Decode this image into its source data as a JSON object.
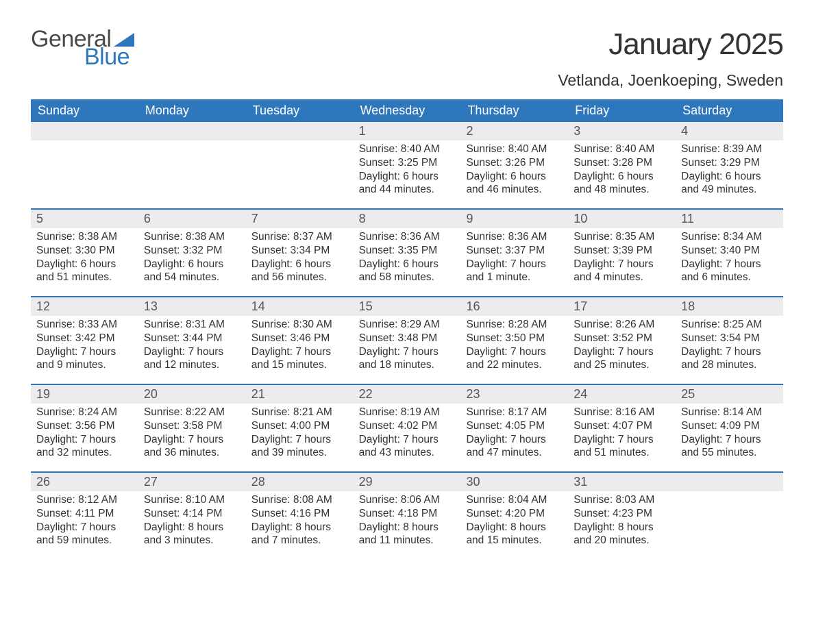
{
  "colors": {
    "brand_blue": "#2f77bc",
    "header_bg": "#2f77bc",
    "header_text": "#ffffff",
    "daynum_bg": "#ececec",
    "text": "#333333",
    "logo_gray": "#4a4a4a",
    "background": "#ffffff",
    "week_divider": "#2f77bc"
  },
  "typography": {
    "month_title_fontsize": 44,
    "location_fontsize": 23,
    "dayhead_fontsize": 18,
    "daynum_fontsize": 18,
    "body_fontsize": 15.5,
    "logo_fontsize": 34,
    "font_family": "Arial"
  },
  "logo": {
    "word1": "General",
    "word2": "Blue"
  },
  "title": "January 2025",
  "location": "Vetlanda, Joenkoeping, Sweden",
  "dayheads": [
    "Sunday",
    "Monday",
    "Tuesday",
    "Wednesday",
    "Thursday",
    "Friday",
    "Saturday"
  ],
  "weeks": [
    [
      {
        "blank": true
      },
      {
        "blank": true
      },
      {
        "blank": true
      },
      {
        "n": "1",
        "sunrise": "Sunrise: 8:40 AM",
        "sunset": "Sunset: 3:25 PM",
        "dl1": "Daylight: 6 hours",
        "dl2": "and 44 minutes."
      },
      {
        "n": "2",
        "sunrise": "Sunrise: 8:40 AM",
        "sunset": "Sunset: 3:26 PM",
        "dl1": "Daylight: 6 hours",
        "dl2": "and 46 minutes."
      },
      {
        "n": "3",
        "sunrise": "Sunrise: 8:40 AM",
        "sunset": "Sunset: 3:28 PM",
        "dl1": "Daylight: 6 hours",
        "dl2": "and 48 minutes."
      },
      {
        "n": "4",
        "sunrise": "Sunrise: 8:39 AM",
        "sunset": "Sunset: 3:29 PM",
        "dl1": "Daylight: 6 hours",
        "dl2": "and 49 minutes."
      }
    ],
    [
      {
        "n": "5",
        "sunrise": "Sunrise: 8:38 AM",
        "sunset": "Sunset: 3:30 PM",
        "dl1": "Daylight: 6 hours",
        "dl2": "and 51 minutes."
      },
      {
        "n": "6",
        "sunrise": "Sunrise: 8:38 AM",
        "sunset": "Sunset: 3:32 PM",
        "dl1": "Daylight: 6 hours",
        "dl2": "and 54 minutes."
      },
      {
        "n": "7",
        "sunrise": "Sunrise: 8:37 AM",
        "sunset": "Sunset: 3:34 PM",
        "dl1": "Daylight: 6 hours",
        "dl2": "and 56 minutes."
      },
      {
        "n": "8",
        "sunrise": "Sunrise: 8:36 AM",
        "sunset": "Sunset: 3:35 PM",
        "dl1": "Daylight: 6 hours",
        "dl2": "and 58 minutes."
      },
      {
        "n": "9",
        "sunrise": "Sunrise: 8:36 AM",
        "sunset": "Sunset: 3:37 PM",
        "dl1": "Daylight: 7 hours",
        "dl2": "and 1 minute."
      },
      {
        "n": "10",
        "sunrise": "Sunrise: 8:35 AM",
        "sunset": "Sunset: 3:39 PM",
        "dl1": "Daylight: 7 hours",
        "dl2": "and 4 minutes."
      },
      {
        "n": "11",
        "sunrise": "Sunrise: 8:34 AM",
        "sunset": "Sunset: 3:40 PM",
        "dl1": "Daylight: 7 hours",
        "dl2": "and 6 minutes."
      }
    ],
    [
      {
        "n": "12",
        "sunrise": "Sunrise: 8:33 AM",
        "sunset": "Sunset: 3:42 PM",
        "dl1": "Daylight: 7 hours",
        "dl2": "and 9 minutes."
      },
      {
        "n": "13",
        "sunrise": "Sunrise: 8:31 AM",
        "sunset": "Sunset: 3:44 PM",
        "dl1": "Daylight: 7 hours",
        "dl2": "and 12 minutes."
      },
      {
        "n": "14",
        "sunrise": "Sunrise: 8:30 AM",
        "sunset": "Sunset: 3:46 PM",
        "dl1": "Daylight: 7 hours",
        "dl2": "and 15 minutes."
      },
      {
        "n": "15",
        "sunrise": "Sunrise: 8:29 AM",
        "sunset": "Sunset: 3:48 PM",
        "dl1": "Daylight: 7 hours",
        "dl2": "and 18 minutes."
      },
      {
        "n": "16",
        "sunrise": "Sunrise: 8:28 AM",
        "sunset": "Sunset: 3:50 PM",
        "dl1": "Daylight: 7 hours",
        "dl2": "and 22 minutes."
      },
      {
        "n": "17",
        "sunrise": "Sunrise: 8:26 AM",
        "sunset": "Sunset: 3:52 PM",
        "dl1": "Daylight: 7 hours",
        "dl2": "and 25 minutes."
      },
      {
        "n": "18",
        "sunrise": "Sunrise: 8:25 AM",
        "sunset": "Sunset: 3:54 PM",
        "dl1": "Daylight: 7 hours",
        "dl2": "and 28 minutes."
      }
    ],
    [
      {
        "n": "19",
        "sunrise": "Sunrise: 8:24 AM",
        "sunset": "Sunset: 3:56 PM",
        "dl1": "Daylight: 7 hours",
        "dl2": "and 32 minutes."
      },
      {
        "n": "20",
        "sunrise": "Sunrise: 8:22 AM",
        "sunset": "Sunset: 3:58 PM",
        "dl1": "Daylight: 7 hours",
        "dl2": "and 36 minutes."
      },
      {
        "n": "21",
        "sunrise": "Sunrise: 8:21 AM",
        "sunset": "Sunset: 4:00 PM",
        "dl1": "Daylight: 7 hours",
        "dl2": "and 39 minutes."
      },
      {
        "n": "22",
        "sunrise": "Sunrise: 8:19 AM",
        "sunset": "Sunset: 4:02 PM",
        "dl1": "Daylight: 7 hours",
        "dl2": "and 43 minutes."
      },
      {
        "n": "23",
        "sunrise": "Sunrise: 8:17 AM",
        "sunset": "Sunset: 4:05 PM",
        "dl1": "Daylight: 7 hours",
        "dl2": "and 47 minutes."
      },
      {
        "n": "24",
        "sunrise": "Sunrise: 8:16 AM",
        "sunset": "Sunset: 4:07 PM",
        "dl1": "Daylight: 7 hours",
        "dl2": "and 51 minutes."
      },
      {
        "n": "25",
        "sunrise": "Sunrise: 8:14 AM",
        "sunset": "Sunset: 4:09 PM",
        "dl1": "Daylight: 7 hours",
        "dl2": "and 55 minutes."
      }
    ],
    [
      {
        "n": "26",
        "sunrise": "Sunrise: 8:12 AM",
        "sunset": "Sunset: 4:11 PM",
        "dl1": "Daylight: 7 hours",
        "dl2": "and 59 minutes."
      },
      {
        "n": "27",
        "sunrise": "Sunrise: 8:10 AM",
        "sunset": "Sunset: 4:14 PM",
        "dl1": "Daylight: 8 hours",
        "dl2": "and 3 minutes."
      },
      {
        "n": "28",
        "sunrise": "Sunrise: 8:08 AM",
        "sunset": "Sunset: 4:16 PM",
        "dl1": "Daylight: 8 hours",
        "dl2": "and 7 minutes."
      },
      {
        "n": "29",
        "sunrise": "Sunrise: 8:06 AM",
        "sunset": "Sunset: 4:18 PM",
        "dl1": "Daylight: 8 hours",
        "dl2": "and 11 minutes."
      },
      {
        "n": "30",
        "sunrise": "Sunrise: 8:04 AM",
        "sunset": "Sunset: 4:20 PM",
        "dl1": "Daylight: 8 hours",
        "dl2": "and 15 minutes."
      },
      {
        "n": "31",
        "sunrise": "Sunrise: 8:03 AM",
        "sunset": "Sunset: 4:23 PM",
        "dl1": "Daylight: 8 hours",
        "dl2": "and 20 minutes."
      },
      {
        "blank": true
      }
    ]
  ]
}
